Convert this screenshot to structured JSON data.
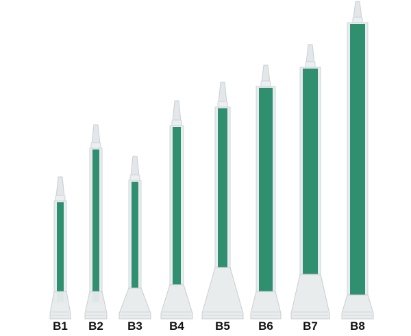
{
  "photo": {
    "subject": "static mixing nozzles",
    "colors": {
      "mixer": "#2f8f6f",
      "body": "#e9ecee",
      "background": "#ffffff"
    },
    "nozzles": [
      {
        "label": "B1"
      },
      {
        "label": "B2"
      },
      {
        "label": "B3"
      },
      {
        "label": "B4"
      },
      {
        "label": "B5"
      },
      {
        "label": "B6"
      },
      {
        "label": "B7"
      },
      {
        "label": "B8"
      }
    ]
  }
}
